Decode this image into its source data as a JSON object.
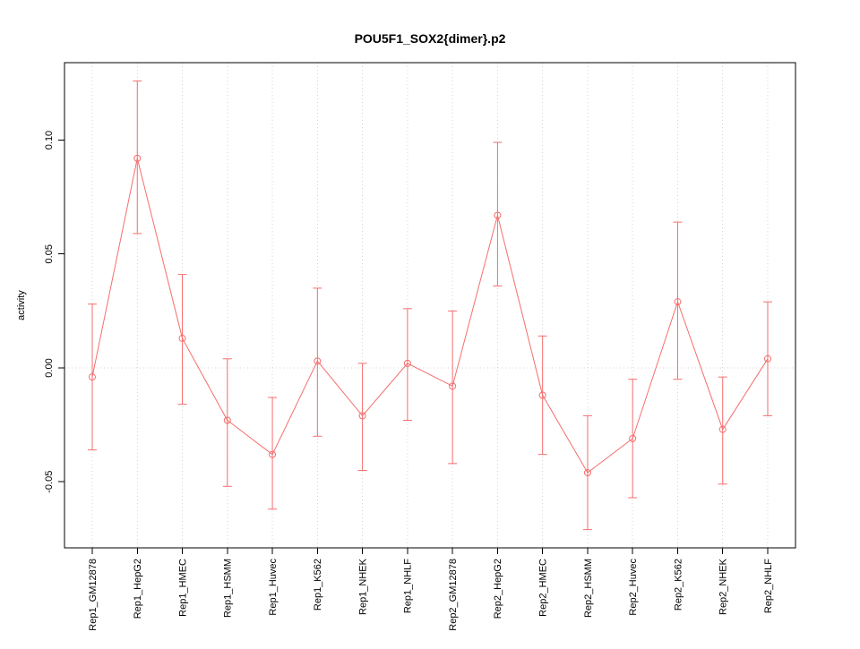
{
  "page": {
    "background": "#ffffff"
  },
  "chart_data": {
    "type": "line",
    "title": "POU5F1_SOX2{dimer}.p2",
    "xlabel": "",
    "ylabel": "activity",
    "ylim": [
      -0.079,
      0.134
    ],
    "yticks": [
      -0.05,
      0,
      0.05,
      0.1
    ],
    "categories": [
      "Rep1_GM12878",
      "Rep1_HepG2",
      "Rep1_HMEC",
      "Rep1_HSMM",
      "Rep1_Huvec",
      "Rep1_K562",
      "Rep1_NHEK",
      "Rep1_NHLF",
      "Rep2_GM12878",
      "Rep2_HepG2",
      "Rep2_HMEC",
      "Rep2_HSMM",
      "Rep2_Huvec",
      "Rep2_K562",
      "Rep2_NHEK",
      "Rep2_NHLF"
    ],
    "series": [
      {
        "name": "activity",
        "values": [
          -0.004,
          0.092,
          0.013,
          -0.023,
          -0.038,
          0.003,
          -0.021,
          0.002,
          -0.008,
          0.067,
          -0.012,
          -0.046,
          -0.031,
          0.029,
          -0.027,
          0.004
        ],
        "lower": [
          -0.036,
          0.059,
          -0.016,
          -0.052,
          -0.062,
          -0.03,
          -0.045,
          -0.023,
          -0.042,
          0.036,
          -0.038,
          -0.071,
          -0.057,
          -0.005,
          -0.051,
          -0.021
        ],
        "upper": [
          0.028,
          0.126,
          0.041,
          0.004,
          -0.013,
          0.035,
          0.002,
          0.026,
          0.025,
          0.099,
          0.014,
          -0.021,
          -0.005,
          0.064,
          -0.004,
          0.029
        ]
      }
    ],
    "style": {
      "line_color": "#f56e6e",
      "marker": "open-circle",
      "marker_radius": 3.5,
      "grid": "dotted-vertical-gridlines-and-zero-line",
      "grid_color": "#d4d4d4",
      "axis_color": "#000000",
      "zero_line_at": 0,
      "legend": "none"
    }
  }
}
